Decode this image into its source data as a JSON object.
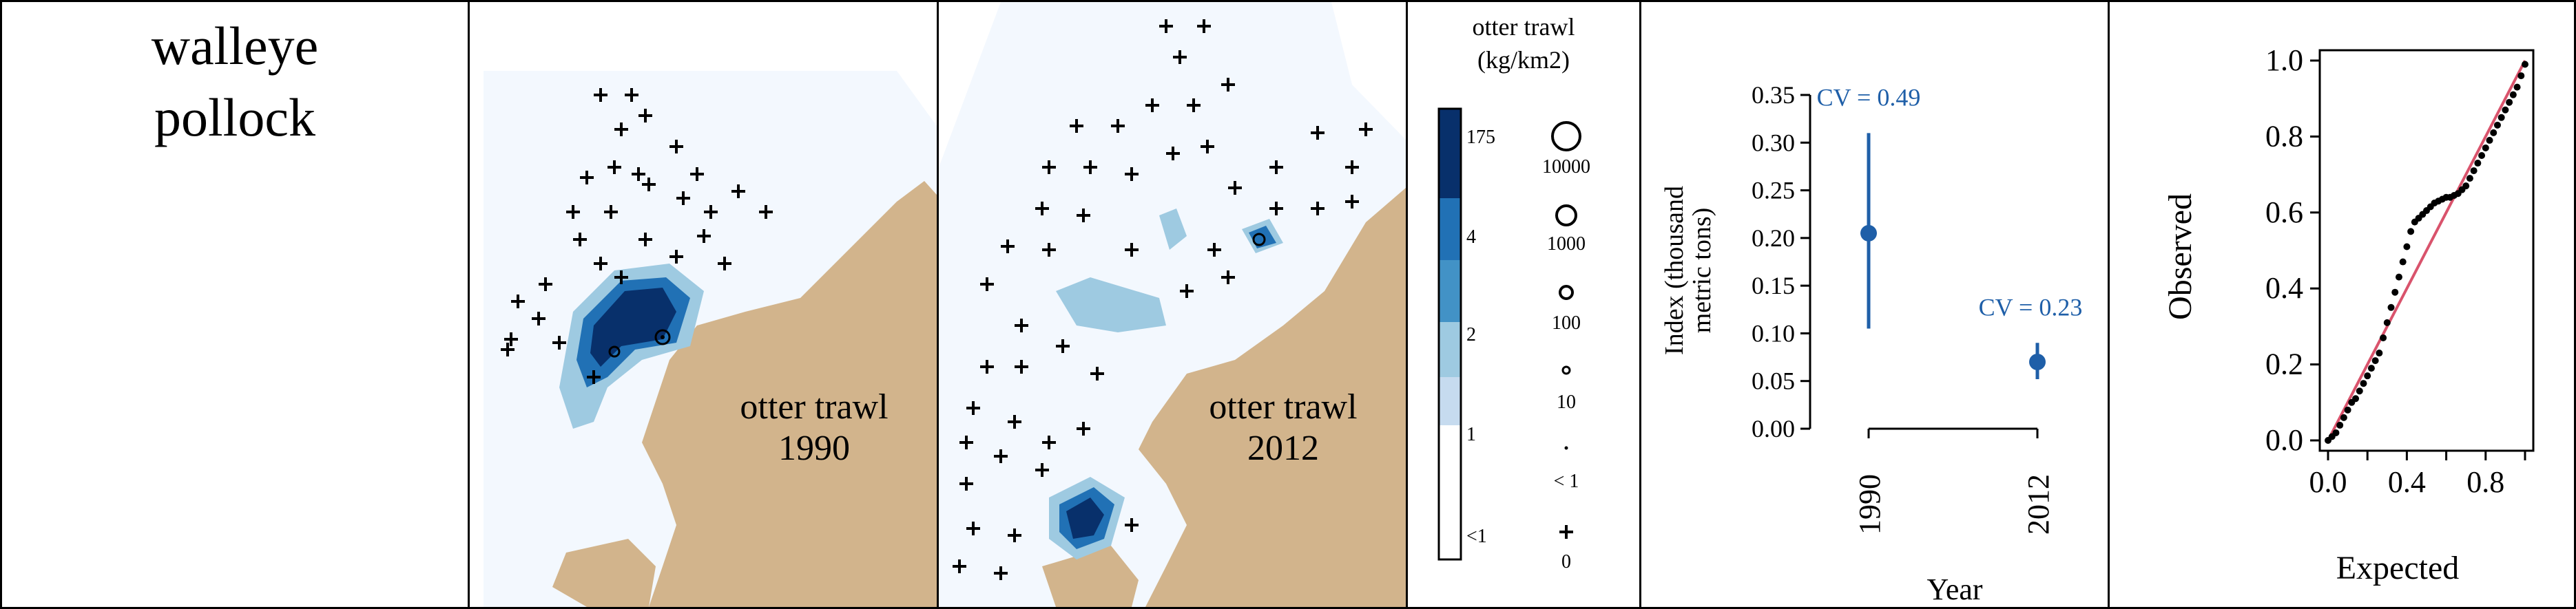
{
  "species": {
    "line1": "walleye",
    "line2": "pollock"
  },
  "maps": [
    {
      "survey": "otter trawl",
      "year": "1990"
    },
    {
      "survey": "otter trawl",
      "year": "2012"
    }
  ],
  "legend": {
    "title_line1": "otter trawl",
    "title_line2": "(kg/km2)",
    "color_labels": [
      "175",
      "4",
      "2",
      "1",
      "<1"
    ],
    "size_labels": [
      "10000",
      "1000",
      "100",
      "10",
      "< 1",
      "0"
    ]
  },
  "colors": {
    "land": "#D2B48C",
    "water_bg": "#F3F8FE",
    "blue_1": "#C6DBEF",
    "blue_2": "#9ECAE1",
    "blue_3": "#4292C6",
    "blue_4": "#2171B5",
    "blue_5": "#08306B",
    "index_point": "#1F5FA8",
    "qq_line": "#D9536C"
  },
  "chart_data": [
    {
      "type": "scatter",
      "title": "",
      "xlabel": "Year",
      "ylabel": "Index (thousand metric tons)",
      "ylabel_line1": "Index (thousand",
      "ylabel_line2": "metric tons)",
      "categories": [
        "1990",
        "2012"
      ],
      "values": [
        0.205,
        0.07
      ],
      "error_low": [
        0.105,
        0.052
      ],
      "error_high": [
        0.31,
        0.09
      ],
      "annotations": [
        "CV = 0.49",
        "CV = 0.23"
      ],
      "yticks": [
        "0.00",
        "0.05",
        "0.10",
        "0.15",
        "0.20",
        "0.25",
        "0.30",
        "0.35"
      ],
      "ylim": [
        0,
        0.35
      ]
    },
    {
      "type": "scatter",
      "title": "",
      "xlabel": "Expected",
      "ylabel": "Observed",
      "xticks": [
        "0.0",
        "0.4",
        "0.8"
      ],
      "yticks": [
        "0.0",
        "0.2",
        "0.4",
        "0.6",
        "0.8",
        "1.0"
      ],
      "xlim": [
        0,
        1
      ],
      "ylim": [
        0,
        1
      ],
      "reference_line": [
        [
          0,
          0
        ],
        [
          1,
          1
        ]
      ],
      "x": [
        0.0,
        0.02,
        0.04,
        0.06,
        0.08,
        0.1,
        0.12,
        0.14,
        0.16,
        0.18,
        0.2,
        0.22,
        0.24,
        0.26,
        0.28,
        0.3,
        0.32,
        0.34,
        0.36,
        0.38,
        0.4,
        0.42,
        0.44,
        0.46,
        0.48,
        0.5,
        0.52,
        0.54,
        0.56,
        0.58,
        0.6,
        0.62,
        0.64,
        0.66,
        0.68,
        0.7,
        0.72,
        0.74,
        0.76,
        0.78,
        0.8,
        0.82,
        0.84,
        0.86,
        0.88,
        0.9,
        0.92,
        0.94,
        0.96,
        0.98,
        1.0
      ],
      "y": [
        0.0,
        0.01,
        0.02,
        0.04,
        0.06,
        0.08,
        0.1,
        0.11,
        0.13,
        0.15,
        0.17,
        0.19,
        0.21,
        0.23,
        0.27,
        0.31,
        0.35,
        0.39,
        0.43,
        0.47,
        0.51,
        0.55,
        0.575,
        0.585,
        0.595,
        0.605,
        0.615,
        0.625,
        0.63,
        0.635,
        0.64,
        0.64,
        0.645,
        0.65,
        0.66,
        0.67,
        0.69,
        0.71,
        0.73,
        0.75,
        0.77,
        0.79,
        0.81,
        0.83,
        0.85,
        0.87,
        0.89,
        0.91,
        0.93,
        0.96,
        0.99
      ]
    }
  ]
}
